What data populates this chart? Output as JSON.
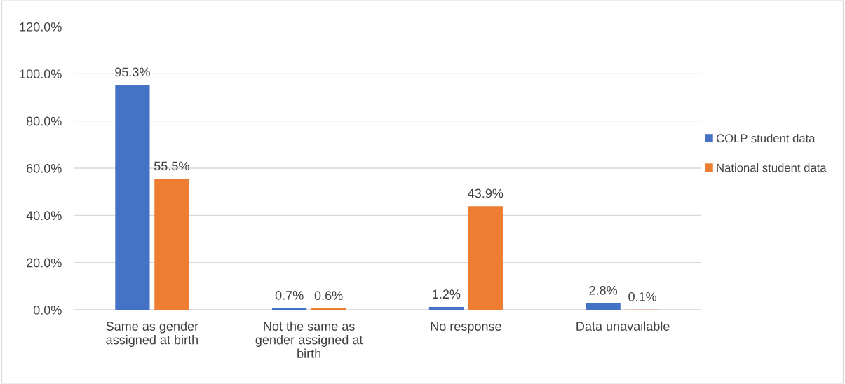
{
  "chart_data": {
    "type": "bar",
    "categories": [
      "Same as gender\nassigned at birth",
      "Not the same as\ngender assigned at\nbirth",
      "No response",
      "Data unavailable"
    ],
    "series": [
      {
        "name": "COLP student data",
        "color": "#4472c4",
        "values": [
          95.3,
          0.7,
          1.2,
          2.8
        ],
        "value_labels": [
          "95.3%",
          "0.7%",
          "1.2%",
          "2.8%"
        ]
      },
      {
        "name": "National student data",
        "color": "#ed7d31",
        "values": [
          55.5,
          0.6,
          43.9,
          0.1
        ],
        "value_labels": [
          "55.5%",
          "0.6%",
          "43.9%",
          "0.1%"
        ]
      }
    ],
    "ylim": [
      0,
      120
    ],
    "yticks": [
      {
        "value": 0,
        "label": "0.0%"
      },
      {
        "value": 20,
        "label": "20.0%"
      },
      {
        "value": 40,
        "label": "40.0%"
      },
      {
        "value": 60,
        "label": "60.0%"
      },
      {
        "value": 80,
        "label": "80.0%"
      },
      {
        "value": 100,
        "label": "100.0%"
      },
      {
        "value": 120,
        "label": "120.0%"
      }
    ],
    "grid": "y",
    "legend": "right"
  }
}
